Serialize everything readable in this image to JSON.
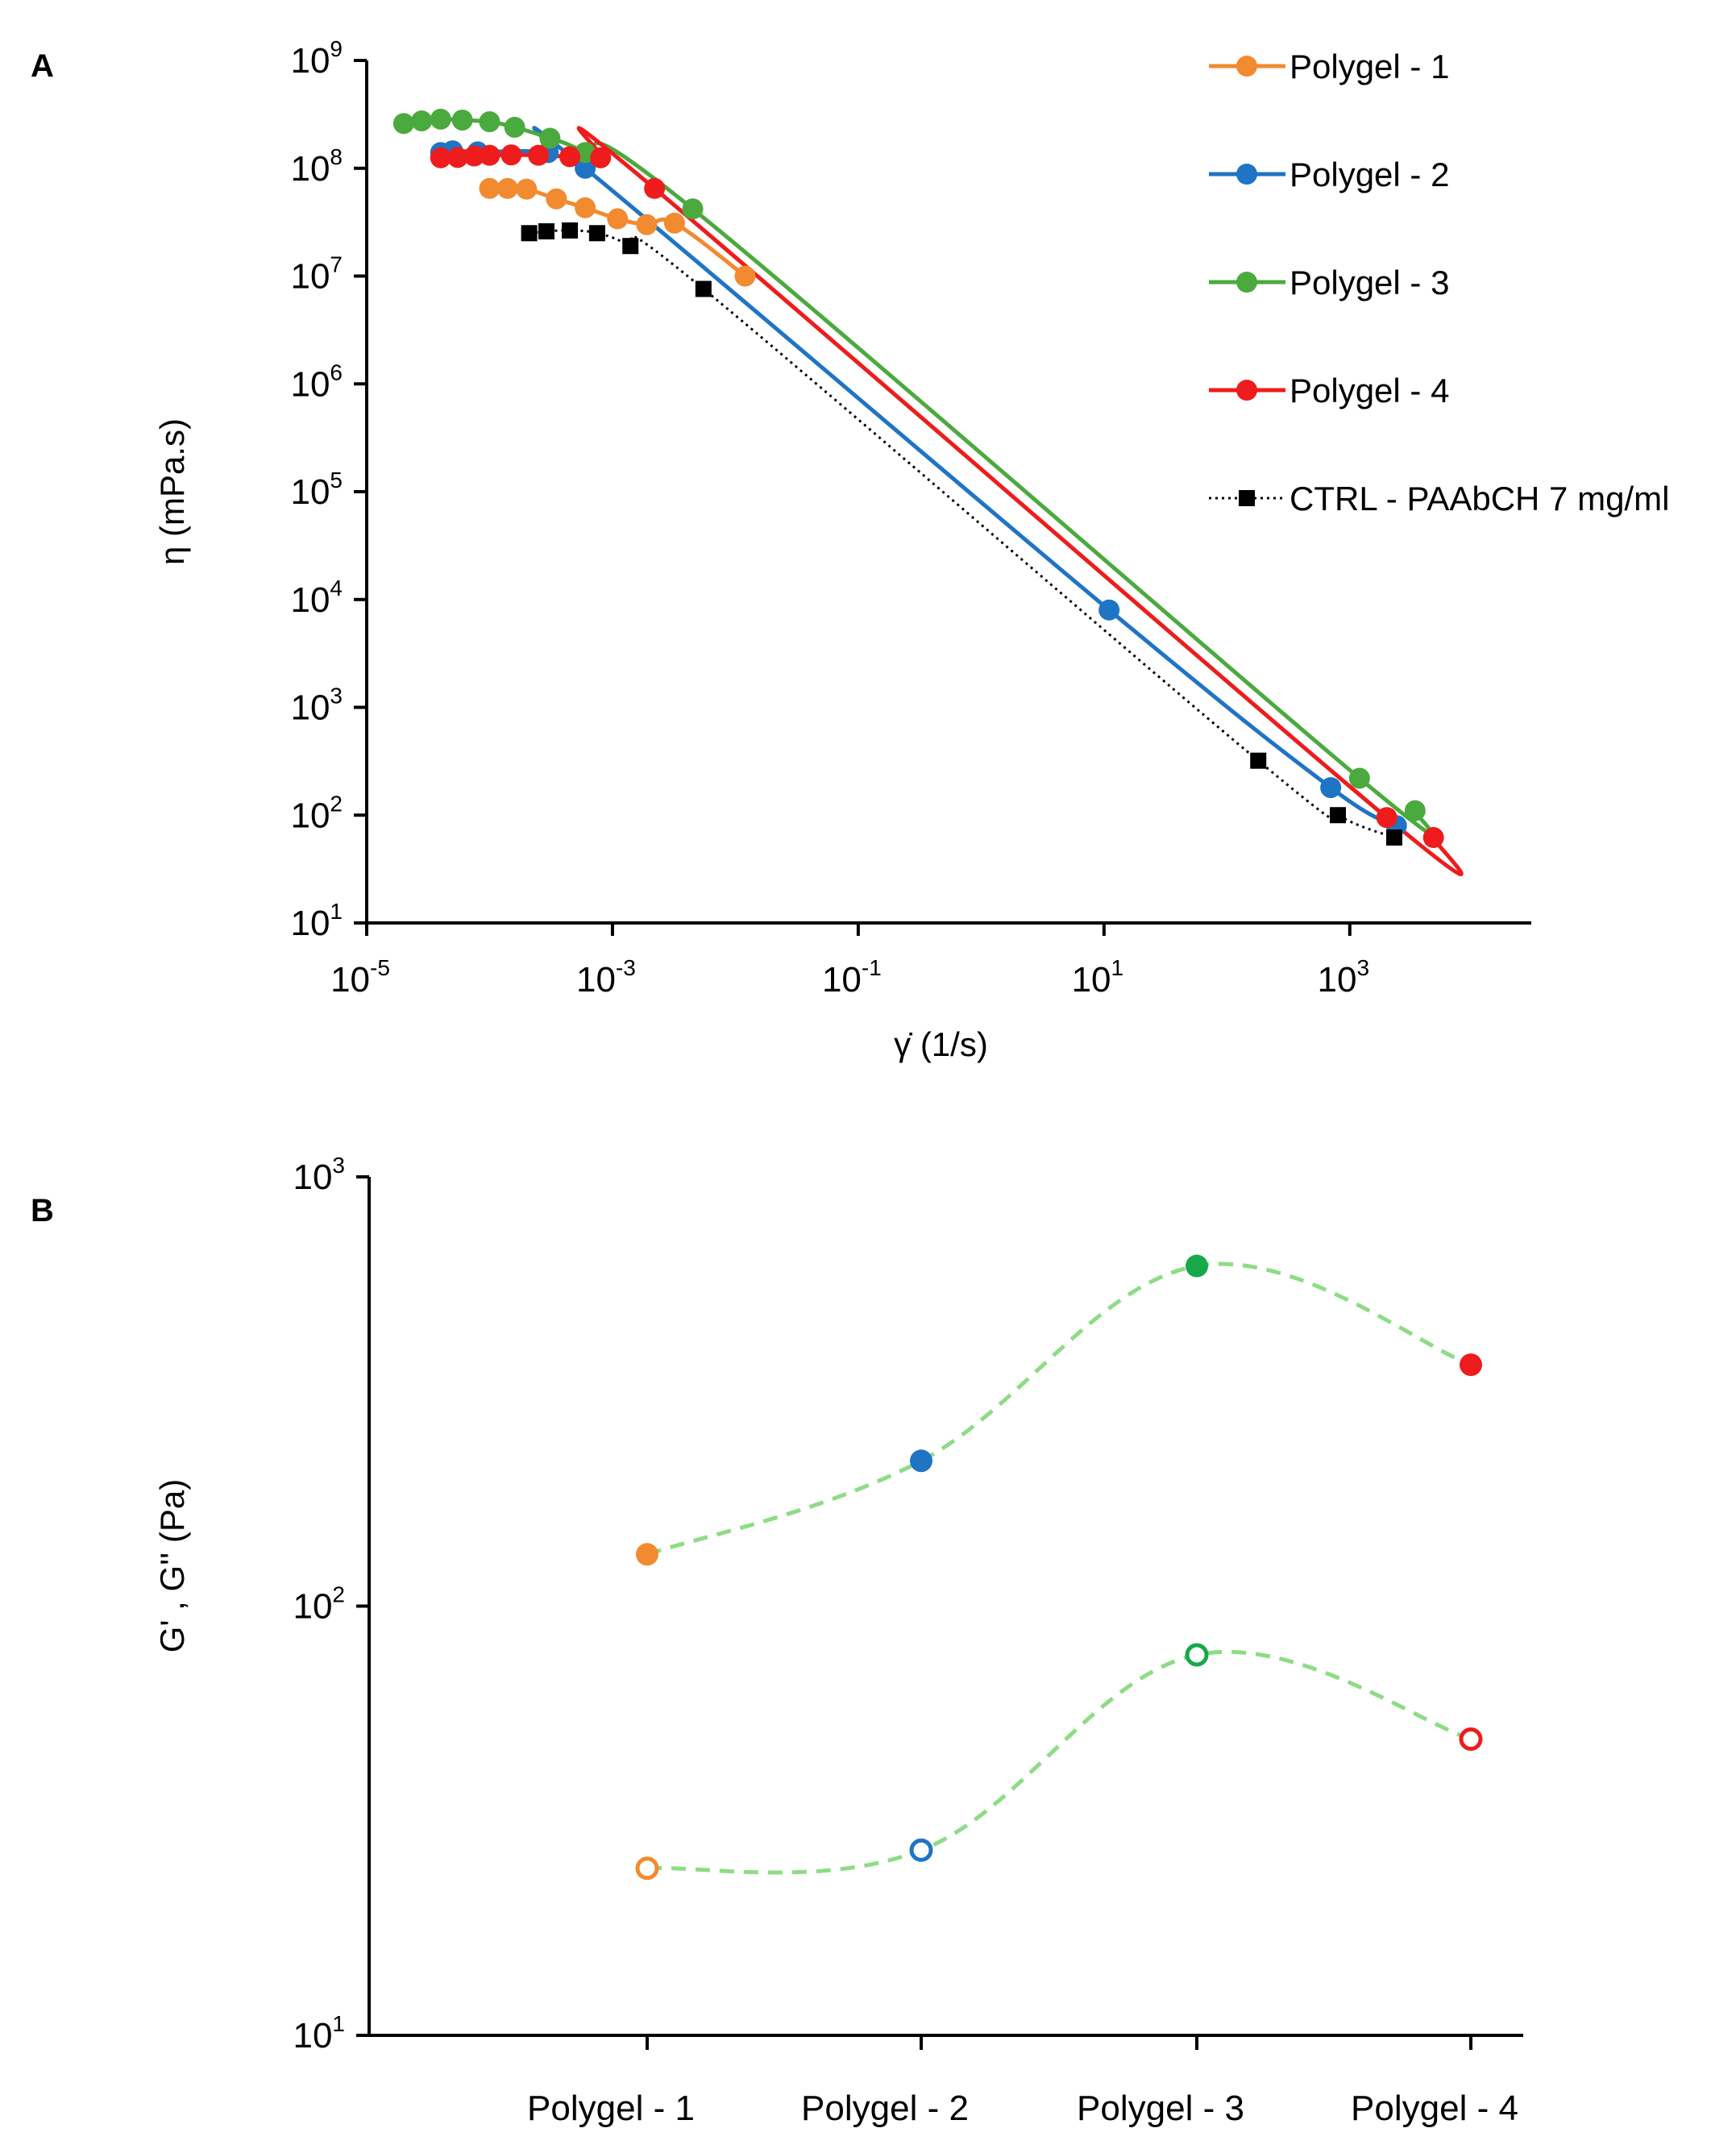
{
  "chart_data": [
    {
      "panel": "A",
      "type": "line",
      "xscale": "log",
      "yscale": "log",
      "xlabel": "γ̇ (1/s)",
      "ylabel": "η (mPa.s)",
      "xlim": [
        1e-05,
        30000
      ],
      "ylim": [
        10,
        1000000000.0
      ],
      "xticks": [
        -5,
        -3,
        -1,
        1,
        3
      ],
      "yticks": [
        1,
        2,
        3,
        4,
        5,
        6,
        7,
        8,
        9
      ],
      "legend_position": "top-right",
      "series": [
        {
          "name": "Polygel - 1",
          "color": "#F28A30",
          "marker": "circle",
          "line": "solid",
          "x": [
            0.0001,
            0.00014,
            0.0002,
            0.00035,
            0.0006,
            0.0011,
            0.0019,
            0.0032,
            0.012
          ],
          "y": [
            65000000,
            65000000,
            64000000,
            52000000,
            43000000,
            34000000,
            30000000,
            31000000,
            10000000
          ]
        },
        {
          "name": "Polygel - 2",
          "color": "#1F74C4",
          "marker": "circle",
          "line": "solid",
          "x": [
            4e-05,
            5e-05,
            8e-05,
            0.0003,
            0.0006,
            11,
            700,
            2400
          ],
          "y": [
            140000000,
            145000000,
            142000000,
            140000000,
            100000000,
            8000,
            180,
            80
          ]
        },
        {
          "name": "Polygel - 3",
          "color": "#4BAA3E",
          "marker": "circle",
          "line": "solid",
          "x": [
            2e-05,
            2.8e-05,
            4e-05,
            6e-05,
            0.0001,
            0.00016,
            0.00031,
            0.0006,
            0.0045,
            1200,
            3400
          ],
          "y": [
            260000000,
            275000000,
            285000000,
            280000000,
            270000000,
            240000000,
            190000000,
            140000000,
            42000000,
            220,
            110
          ]
        },
        {
          "name": "Polygel - 4",
          "color": "#EE1C1C",
          "marker": "circle",
          "line": "solid",
          "x": [
            4e-05,
            5.5e-05,
            7.5e-05,
            0.0001,
            0.00015,
            0.00025,
            0.00045,
            0.0008,
            0.0022,
            2000,
            4800
          ],
          "y": [
            125000000,
            126000000,
            130000000,
            132000000,
            133000000,
            132000000,
            128000000,
            125000000,
            65000000,
            95,
            62
          ]
        },
        {
          "name": "CTRL - PAAbCH 7 mg/ml",
          "color": "#000000",
          "marker": "square",
          "line": "dotted",
          "x": [
            0.00021,
            0.00029,
            0.00045,
            0.00075,
            0.0014,
            0.0055,
            180,
            800,
            2300
          ],
          "y": [
            25000000,
            26000000,
            26500000,
            25000000,
            19000000,
            7600000,
            320,
            100,
            62
          ]
        }
      ]
    },
    {
      "panel": "B",
      "type": "scatter",
      "yscale": "log",
      "ylabel": "G' , G'' (Pa)",
      "ylim": [
        10,
        1000
      ],
      "yticks": [
        1,
        2,
        3
      ],
      "categories": [
        "Polygel - 1",
        "Polygel - 2",
        "Polygel - 3",
        "Polygel - 4"
      ],
      "point_colors": [
        "#F28A30",
        "#1F74C4",
        "#17A84A",
        "#EE1C1C"
      ],
      "connector_color": "#8EDC85",
      "series": [
        {
          "name": "G'",
          "marker": "filled-circle",
          "values": [
            132,
            218,
            620,
            365
          ]
        },
        {
          "name": "G''",
          "marker": "open-circle",
          "values": [
            24.5,
            27,
            77,
            49
          ]
        }
      ]
    }
  ]
}
